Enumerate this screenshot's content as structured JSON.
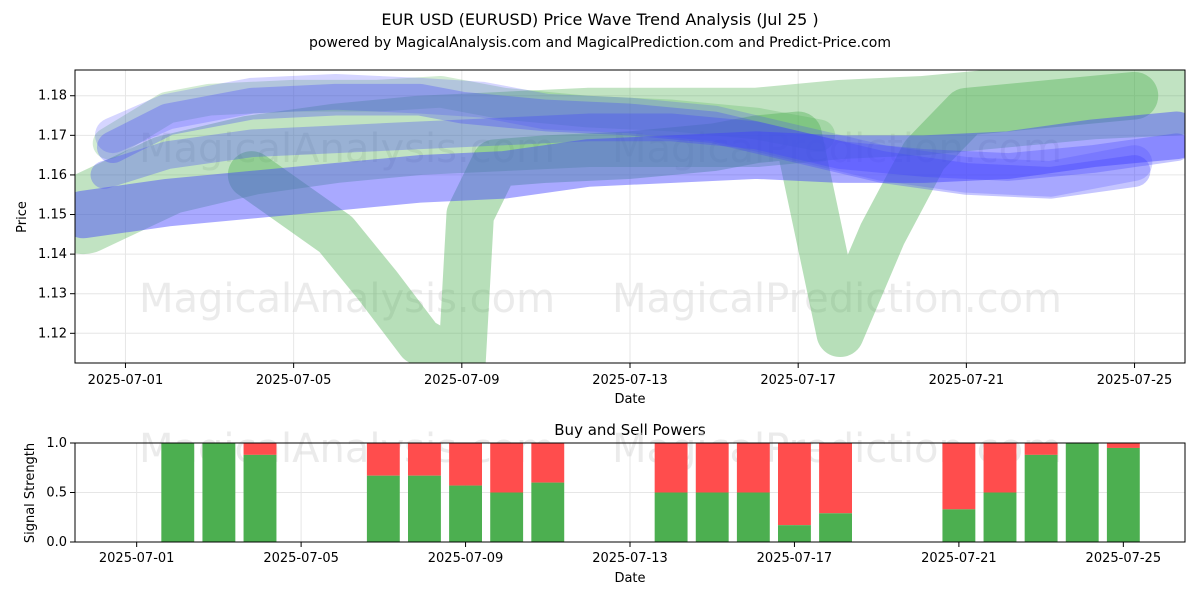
{
  "header": {
    "title": "EUR USD (EURUSD) Price Wave Trend Analysis (Jul 25 )",
    "subtitle": "powered by MagicalAnalysis.com and MagicalPrediction.com and Predict-Price.com"
  },
  "watermarks": {
    "left": "MagicalAnalysis.com",
    "right": "MagicalPrediction.com"
  },
  "chart_data": [
    {
      "type": "area",
      "name": "price-wave-chart",
      "title": "",
      "xlabel": "Date",
      "ylabel": "Price",
      "xlim": [
        -1.2,
        25.2
      ],
      "ylim": [
        1.1125,
        1.1865
      ],
      "x_ticks": [
        {
          "x": 0,
          "label": "2025-07-01"
        },
        {
          "x": 4,
          "label": "2025-07-05"
        },
        {
          "x": 8,
          "label": "2025-07-09"
        },
        {
          "x": 12,
          "label": "2025-07-13"
        },
        {
          "x": 16,
          "label": "2025-07-17"
        },
        {
          "x": 20,
          "label": "2025-07-21"
        },
        {
          "x": 24,
          "label": "2025-07-25"
        }
      ],
      "y_ticks": [
        1.12,
        1.13,
        1.14,
        1.15,
        1.16,
        1.17,
        1.18
      ],
      "y_tick_labels": [
        "1.12",
        "1.13",
        "1.14",
        "1.15",
        "1.16",
        "1.17",
        "1.18"
      ],
      "grid": true,
      "colors": {
        "green": "#4caf50",
        "blue": "#4040ff",
        "dark": "#2e6b8a"
      },
      "series": [
        {
          "name": "green-wave-short",
          "color": "#4caf50",
          "opacity": 0.4,
          "width_price": 0.012,
          "points": [
            [
              3.0,
              1.16
            ],
            [
              5.0,
              1.145
            ],
            [
              6.0,
              1.132
            ],
            [
              7.0,
              1.118
            ],
            [
              8.0,
              1.112
            ],
            [
              8.2,
              1.15
            ],
            [
              8.8,
              1.163
            ],
            [
              10.0,
              1.164
            ],
            [
              12.0,
              1.165
            ],
            [
              14.0,
              1.167
            ],
            [
              15.0,
              1.169
            ],
            [
              16.0,
              1.17
            ],
            [
              17.0,
              1.12
            ],
            [
              18.0,
              1.145
            ],
            [
              19.0,
              1.165
            ],
            [
              20.0,
              1.176
            ],
            [
              22.0,
              1.178
            ],
            [
              24.0,
              1.18
            ]
          ]
        },
        {
          "name": "green-trend-wide",
          "color": "#4caf50",
          "opacity": 0.35,
          "width_price": 0.02,
          "points": [
            [
              -1.0,
              1.15
            ],
            [
              1.0,
              1.16
            ],
            [
              3.0,
              1.165
            ],
            [
              5.0,
              1.168
            ],
            [
              7.0,
              1.17
            ],
            [
              9.0,
              1.171
            ],
            [
              11.0,
              1.172
            ],
            [
              13.0,
              1.172
            ],
            [
              15.0,
              1.172
            ],
            [
              17.0,
              1.174
            ],
            [
              19.0,
              1.175
            ],
            [
              21.0,
              1.177
            ],
            [
              23.0,
              1.179
            ],
            [
              25.0,
              1.18
            ]
          ]
        },
        {
          "name": "green-top-wave",
          "color": "#4caf50",
          "opacity": 0.25,
          "width_price": 0.008,
          "points": [
            [
              -0.4,
              1.168
            ],
            [
              1.0,
              1.177
            ],
            [
              2.0,
              1.179
            ],
            [
              4.0,
              1.18
            ],
            [
              6.0,
              1.18
            ],
            [
              7.5,
              1.181
            ],
            [
              9.0,
              1.178
            ],
            [
              11.0,
              1.176
            ],
            [
              13.0,
              1.175
            ],
            [
              15.0,
              1.173
            ],
            [
              16.5,
              1.17
            ]
          ]
        },
        {
          "name": "blue-top-wave-1",
          "color": "#4040ff",
          "opacity": 0.3,
          "width_price": 0.008,
          "points": [
            [
              -0.3,
              1.167
            ],
            [
              1.0,
              1.174
            ],
            [
              3.0,
              1.178
            ],
            [
              5.0,
              1.179
            ],
            [
              7.0,
              1.179
            ],
            [
              8.0,
              1.177
            ],
            [
              10.0,
              1.175
            ],
            [
              12.0,
              1.174
            ],
            [
              14.0,
              1.172
            ],
            [
              16.0,
              1.167
            ],
            [
              18.0,
              1.162
            ],
            [
              20.0,
              1.159
            ],
            [
              22.0,
              1.158
            ],
            [
              24.0,
              1.161
            ]
          ]
        },
        {
          "name": "blue-top-wave-2",
          "color": "#4040ff",
          "opacity": 0.22,
          "width_price": 0.009,
          "points": [
            [
              -0.3,
              1.17
            ],
            [
              1.0,
              1.176
            ],
            [
              3.0,
              1.18
            ],
            [
              5.0,
              1.181
            ],
            [
              7.0,
              1.18
            ],
            [
              8.5,
              1.179
            ],
            [
              10.0,
              1.176
            ],
            [
              12.0,
              1.175
            ],
            [
              14.0,
              1.173
            ],
            [
              16.0,
              1.168
            ],
            [
              18.0,
              1.163
            ],
            [
              20.0,
              1.16
            ],
            [
              22.0,
              1.159
            ],
            [
              24.0,
              1.163
            ]
          ]
        },
        {
          "name": "blue-band",
          "color": "#4040ff",
          "opacity": 0.45,
          "width_price": 0.012,
          "points": [
            [
              -1.0,
              1.15
            ],
            [
              1.0,
              1.153
            ],
            [
              3.0,
              1.155
            ],
            [
              5.0,
              1.157
            ],
            [
              7.0,
              1.159
            ],
            [
              9.0,
              1.16
            ],
            [
              11.0,
              1.163
            ],
            [
              13.0,
              1.164
            ],
            [
              15.0,
              1.165
            ],
            [
              17.0,
              1.164
            ],
            [
              19.0,
              1.164
            ],
            [
              21.0,
              1.165
            ],
            [
              23.0,
              1.168
            ],
            [
              25.0,
              1.17
            ]
          ]
        },
        {
          "name": "blue-mid-wave",
          "color": "#4040ff",
          "opacity": 0.3,
          "width_price": 0.007,
          "points": [
            [
              -0.5,
              1.16
            ],
            [
              1.0,
              1.165
            ],
            [
              3.0,
              1.168
            ],
            [
              5.0,
              1.169
            ],
            [
              7.0,
              1.17
            ],
            [
              9.0,
              1.171
            ],
            [
              11.0,
              1.172
            ],
            [
              13.0,
              1.172
            ],
            [
              15.0,
              1.17
            ],
            [
              17.0,
              1.165
            ],
            [
              19.0,
              1.163
            ],
            [
              21.0,
              1.162
            ],
            [
              23.0,
              1.164
            ],
            [
              25.0,
              1.167
            ]
          ]
        }
      ]
    },
    {
      "type": "bar",
      "name": "buy-sell-chart",
      "title": "Buy and Sell Powers",
      "xlabel": "Date",
      "ylabel": "Signal Strength",
      "xlim": [
        -1.5,
        25.5
      ],
      "ylim": [
        0,
        1.0
      ],
      "y_ticks": [
        0.0,
        0.5,
        1.0
      ],
      "y_tick_labels": [
        "0.0",
        "0.5",
        "1.0"
      ],
      "x_ticks": [
        {
          "x": 0,
          "label": "2025-07-01"
        },
        {
          "x": 4,
          "label": "2025-07-05"
        },
        {
          "x": 8,
          "label": "2025-07-09"
        },
        {
          "x": 12,
          "label": "2025-07-13"
        },
        {
          "x": 16,
          "label": "2025-07-17"
        },
        {
          "x": 20,
          "label": "2025-07-21"
        },
        {
          "x": 24,
          "label": "2025-07-25"
        }
      ],
      "grid": true,
      "series": [
        {
          "name": "Buy",
          "color": "#4caf50"
        },
        {
          "name": "Sell",
          "color": "#ff4d4d"
        }
      ],
      "bars": [
        {
          "x": 1,
          "buy": 1.0
        },
        {
          "x": 2,
          "buy": 1.0
        },
        {
          "x": 3,
          "buy": 0.88
        },
        {
          "x": 6,
          "buy": 0.67
        },
        {
          "x": 7,
          "buy": 0.67
        },
        {
          "x": 8,
          "buy": 0.57
        },
        {
          "x": 9,
          "buy": 0.5
        },
        {
          "x": 10,
          "buy": 0.6
        },
        {
          "x": 13,
          "buy": 0.5
        },
        {
          "x": 14,
          "buy": 0.5
        },
        {
          "x": 15,
          "buy": 0.5
        },
        {
          "x": 16,
          "buy": 0.17
        },
        {
          "x": 17,
          "buy": 0.29
        },
        {
          "x": 20,
          "buy": 0.33
        },
        {
          "x": 21,
          "buy": 0.5
        },
        {
          "x": 22,
          "buy": 0.88
        },
        {
          "x": 23,
          "buy": 1.0
        },
        {
          "x": 24,
          "buy": 0.95
        }
      ]
    }
  ]
}
